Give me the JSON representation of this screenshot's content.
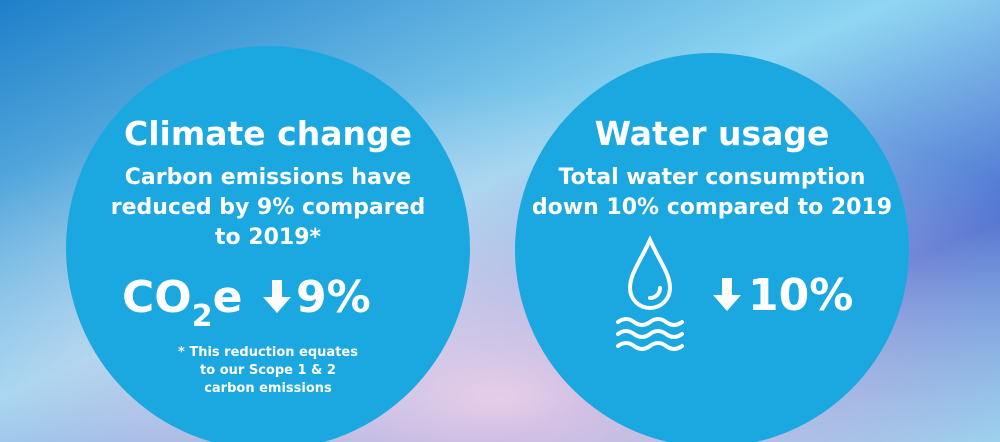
{
  "cards": [
    {
      "title": "Climate change",
      "description": [
        "Carbon emissions have",
        "reduced by 9% compared",
        "to 2019*"
      ],
      "metric_unit": {
        "base": "CO",
        "subscript": "2",
        "suffix": "e"
      },
      "metric_value": "9%",
      "footnote": [
        "* This reduction equates",
        "to our Scope 1 & 2",
        "carbon emissions"
      ]
    },
    {
      "title": "Water usage",
      "description": [
        "Total water consumption",
        "down 10% compared to 2019"
      ],
      "metric_value": "10%"
    }
  ]
}
